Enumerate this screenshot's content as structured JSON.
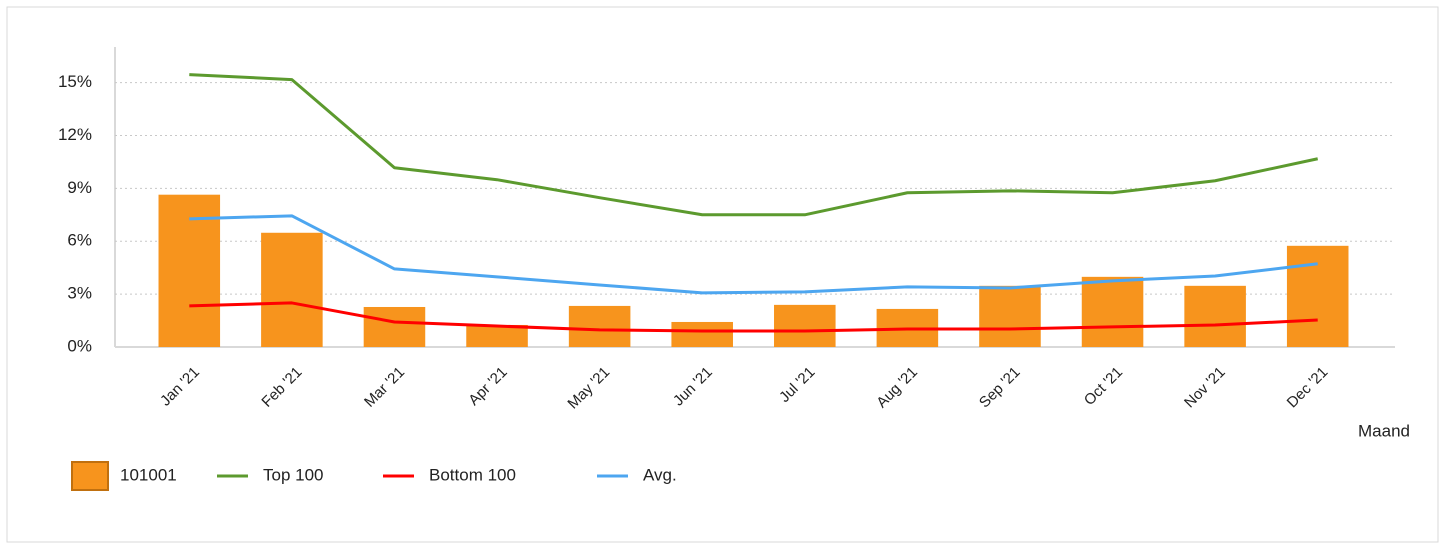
{
  "chart_data": {
    "type": "bar_line",
    "categories": [
      "Jan '21",
      "Feb '21",
      "Mar '21",
      "Apr '21",
      "May '21",
      "Jun '21",
      "Jul '21",
      "Aug '21",
      "Sep '21",
      "Oct '21",
      "Nov '21",
      "Dec '21"
    ],
    "series": [
      {
        "name": "101001",
        "type": "bar",
        "color": "#f7941d",
        "values": [
          8.64,
          6.48,
          2.27,
          1.25,
          2.33,
          1.42,
          2.39,
          2.16,
          3.47,
          3.98,
          3.47,
          5.74
        ]
      },
      {
        "name": "Top 100",
        "type": "line",
        "color": "#5c9a2e",
        "values": [
          15.45,
          15.17,
          10.17,
          9.49,
          8.47,
          7.5,
          7.5,
          8.75,
          8.86,
          8.75,
          9.43,
          10.68
        ]
      },
      {
        "name": "Bottom 100",
        "type": "line",
        "color": "#ff0000",
        "values": [
          2.33,
          2.5,
          1.42,
          1.19,
          0.97,
          0.91,
          0.91,
          1.02,
          1.02,
          1.14,
          1.25,
          1.53
        ]
      },
      {
        "name": "Avg.",
        "type": "line",
        "color": "#4da6f0",
        "values": [
          7.27,
          7.44,
          4.43,
          3.98,
          3.52,
          3.07,
          3.13,
          3.41,
          3.35,
          3.75,
          4.03,
          4.72
        ]
      }
    ],
    "x_label": "Maand",
    "ylim": [
      0,
      15.6
    ],
    "yticks": [
      {
        "value": 0,
        "label": "0%"
      },
      {
        "value": 3,
        "label": "3%"
      },
      {
        "value": 6,
        "label": "6%"
      },
      {
        "value": 9,
        "label": "9%"
      },
      {
        "value": 12,
        "label": "12%"
      },
      {
        "value": 15,
        "label": "15%"
      }
    ],
    "grid": true,
    "legend": "bottom"
  }
}
